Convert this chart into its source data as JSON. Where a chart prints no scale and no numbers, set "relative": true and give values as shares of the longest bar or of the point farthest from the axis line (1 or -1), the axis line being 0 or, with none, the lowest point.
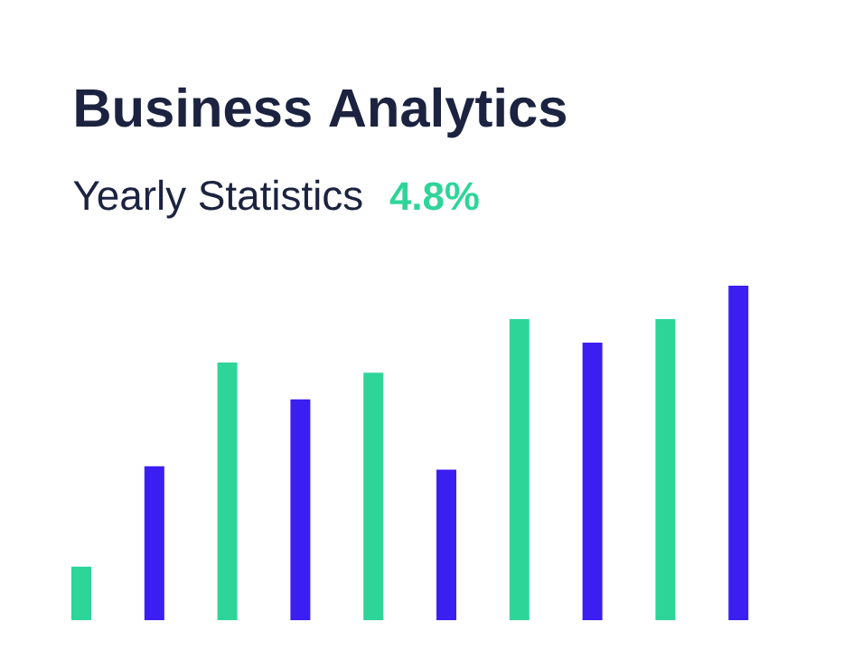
{
  "chart_data": {
    "type": "bar",
    "title": "Business Analytics",
    "subtitle": "Yearly Statistics",
    "annotations": [
      "4.8%"
    ],
    "relative": true,
    "categories": [
      null,
      null,
      null,
      null,
      null,
      null,
      null,
      null,
      null,
      null
    ],
    "values": [
      0.16,
      0.46,
      0.77,
      0.66,
      0.74,
      0.45,
      0.9,
      0.83,
      0.9,
      1
    ],
    "colors": [
      "#2ed598",
      "#3b1ef2",
      "#2ed598",
      "#3b1ef2",
      "#2ed598",
      "#3b1ef2",
      "#2ed598",
      "#3b1ef2",
      "#2ed598",
      "#3b1ef2"
    ]
  }
}
